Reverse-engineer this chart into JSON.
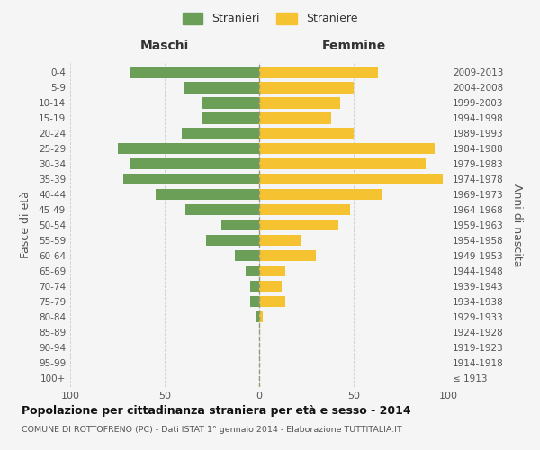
{
  "age_groups": [
    "100+",
    "95-99",
    "90-94",
    "85-89",
    "80-84",
    "75-79",
    "70-74",
    "65-69",
    "60-64",
    "55-59",
    "50-54",
    "45-49",
    "40-44",
    "35-39",
    "30-34",
    "25-29",
    "20-24",
    "15-19",
    "10-14",
    "5-9",
    "0-4"
  ],
  "birth_years": [
    "≤ 1913",
    "1914-1918",
    "1919-1923",
    "1924-1928",
    "1929-1933",
    "1934-1938",
    "1939-1943",
    "1944-1948",
    "1949-1953",
    "1954-1958",
    "1959-1963",
    "1964-1968",
    "1969-1973",
    "1974-1978",
    "1979-1983",
    "1984-1988",
    "1989-1993",
    "1994-1998",
    "1999-2003",
    "2004-2008",
    "2009-2013"
  ],
  "maschi": [
    0,
    0,
    0,
    0,
    2,
    5,
    5,
    7,
    13,
    28,
    20,
    39,
    55,
    72,
    68,
    75,
    41,
    30,
    30,
    40,
    68
  ],
  "femmine": [
    0,
    0,
    0,
    0,
    2,
    14,
    12,
    14,
    30,
    22,
    42,
    48,
    65,
    97,
    88,
    93,
    50,
    38,
    43,
    50,
    63
  ],
  "maschi_color": "#6b9e57",
  "femmine_color": "#f5c232",
  "bg_color": "#f5f5f5",
  "title": "Popolazione per cittadinanza straniera per età e sesso - 2014",
  "subtitle": "COMUNE DI ROTTOFRENO (PC) - Dati ISTAT 1° gennaio 2014 - Elaborazione TUTTITALIA.IT",
  "ylabel_left": "Fasce di età",
  "ylabel_right": "Anni di nascita",
  "legend_maschi": "Stranieri",
  "legend_femmine": "Straniere",
  "header_maschi": "Maschi",
  "header_femmine": "Femmine",
  "xlim": 100,
  "bar_height": 0.75
}
